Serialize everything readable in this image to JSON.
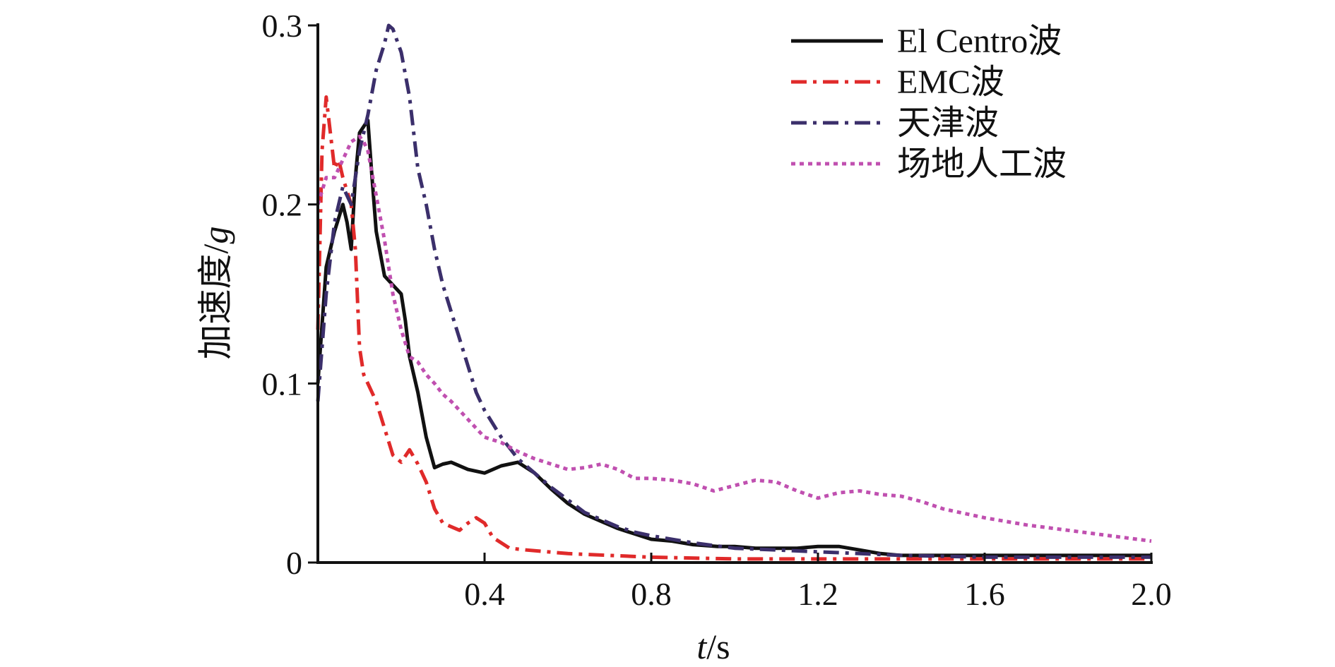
{
  "chart_data": {
    "type": "line",
    "title": "",
    "xlabel": {
      "var": "t",
      "unit": "/s"
    },
    "ylabel": {
      "text": "加速度/",
      "var": "g"
    },
    "xlim": [
      0,
      2.0
    ],
    "ylim": [
      0,
      0.3
    ],
    "xticks": [
      0.4,
      0.8,
      1.2,
      1.6,
      2.0
    ],
    "xtick_labels": [
      "0.4",
      "0.8",
      "1.2",
      "1.6",
      "2.0"
    ],
    "yticks": [
      0,
      0.1,
      0.2,
      0.3
    ],
    "ytick_labels": [
      "0",
      "0.1",
      "0.2",
      "0.3"
    ],
    "grid": false,
    "legend_position": "top-right",
    "series": [
      {
        "name": "El Centro波",
        "color": "#111111",
        "dash": "solid",
        "x": [
          0.0,
          0.02,
          0.04,
          0.06,
          0.07,
          0.08,
          0.09,
          0.1,
          0.12,
          0.13,
          0.14,
          0.16,
          0.18,
          0.2,
          0.21,
          0.22,
          0.24,
          0.26,
          0.28,
          0.3,
          0.32,
          0.36,
          0.4,
          0.44,
          0.48,
          0.52,
          0.56,
          0.6,
          0.64,
          0.68,
          0.72,
          0.76,
          0.8,
          0.85,
          0.9,
          0.96,
          1.0,
          1.05,
          1.1,
          1.15,
          1.2,
          1.25,
          1.3,
          1.35,
          1.4,
          1.5,
          1.6,
          1.7,
          1.8,
          2.0
        ],
        "y": [
          0.1,
          0.165,
          0.185,
          0.2,
          0.19,
          0.175,
          0.215,
          0.24,
          0.247,
          0.215,
          0.185,
          0.16,
          0.155,
          0.15,
          0.135,
          0.115,
          0.095,
          0.07,
          0.053,
          0.055,
          0.056,
          0.052,
          0.05,
          0.054,
          0.056,
          0.05,
          0.041,
          0.033,
          0.027,
          0.023,
          0.019,
          0.016,
          0.013,
          0.012,
          0.01,
          0.009,
          0.009,
          0.008,
          0.008,
          0.008,
          0.009,
          0.009,
          0.007,
          0.005,
          0.004,
          0.004,
          0.004,
          0.004,
          0.004,
          0.004
        ]
      },
      {
        "name": "EMC波",
        "color": "#e02a2a",
        "dash": "dashdot",
        "x": [
          0.0,
          0.01,
          0.02,
          0.03,
          0.04,
          0.05,
          0.06,
          0.08,
          0.09,
          0.1,
          0.11,
          0.12,
          0.14,
          0.16,
          0.18,
          0.2,
          0.22,
          0.24,
          0.26,
          0.28,
          0.3,
          0.34,
          0.36,
          0.38,
          0.4,
          0.42,
          0.46,
          0.5,
          0.6,
          0.7,
          0.8,
          1.0,
          1.2,
          1.4,
          1.6,
          1.8,
          2.0
        ],
        "y": [
          0.13,
          0.23,
          0.26,
          0.24,
          0.22,
          0.225,
          0.215,
          0.2,
          0.175,
          0.12,
          0.105,
          0.1,
          0.09,
          0.075,
          0.06,
          0.056,
          0.063,
          0.055,
          0.045,
          0.03,
          0.022,
          0.018,
          0.022,
          0.025,
          0.022,
          0.014,
          0.008,
          0.007,
          0.005,
          0.004,
          0.003,
          0.002,
          0.002,
          0.002,
          0.002,
          0.002,
          0.002
        ]
      },
      {
        "name": "天津波",
        "color": "#3b2f6b",
        "dash": "dashdot",
        "x": [
          0.0,
          0.02,
          0.04,
          0.06,
          0.08,
          0.1,
          0.12,
          0.14,
          0.16,
          0.17,
          0.18,
          0.2,
          0.22,
          0.24,
          0.26,
          0.28,
          0.3,
          0.32,
          0.34,
          0.36,
          0.38,
          0.4,
          0.44,
          0.48,
          0.52,
          0.56,
          0.6,
          0.64,
          0.68,
          0.72,
          0.76,
          0.8,
          0.9,
          1.0,
          1.1,
          1.2,
          1.3,
          1.4,
          1.6,
          1.8,
          2.0
        ],
        "y": [
          0.09,
          0.15,
          0.19,
          0.21,
          0.2,
          0.23,
          0.25,
          0.275,
          0.29,
          0.3,
          0.298,
          0.285,
          0.26,
          0.22,
          0.2,
          0.175,
          0.155,
          0.14,
          0.125,
          0.11,
          0.095,
          0.085,
          0.07,
          0.058,
          0.05,
          0.042,
          0.035,
          0.028,
          0.024,
          0.02,
          0.017,
          0.015,
          0.011,
          0.008,
          0.007,
          0.006,
          0.005,
          0.004,
          0.003,
          0.003,
          0.003
        ]
      },
      {
        "name": "场地人工波",
        "color": "#c050b0",
        "dash": "dotted",
        "x": [
          0.0,
          0.02,
          0.04,
          0.06,
          0.08,
          0.1,
          0.11,
          0.12,
          0.14,
          0.16,
          0.18,
          0.2,
          0.22,
          0.24,
          0.26,
          0.28,
          0.3,
          0.32,
          0.34,
          0.36,
          0.38,
          0.4,
          0.44,
          0.48,
          0.52,
          0.56,
          0.6,
          0.64,
          0.68,
          0.72,
          0.76,
          0.8,
          0.85,
          0.9,
          0.95,
          1.0,
          1.05,
          1.1,
          1.15,
          1.2,
          1.25,
          1.3,
          1.35,
          1.4,
          1.45,
          1.5,
          1.6,
          1.7,
          1.8,
          1.9,
          2.0
        ],
        "y": [
          0.2,
          0.215,
          0.215,
          0.225,
          0.235,
          0.238,
          0.235,
          0.23,
          0.205,
          0.18,
          0.15,
          0.13,
          0.115,
          0.112,
          0.105,
          0.1,
          0.094,
          0.09,
          0.085,
          0.08,
          0.075,
          0.07,
          0.067,
          0.062,
          0.058,
          0.055,
          0.052,
          0.053,
          0.055,
          0.052,
          0.047,
          0.047,
          0.046,
          0.044,
          0.04,
          0.043,
          0.046,
          0.045,
          0.04,
          0.036,
          0.039,
          0.04,
          0.038,
          0.037,
          0.034,
          0.03,
          0.025,
          0.021,
          0.018,
          0.015,
          0.012
        ]
      }
    ]
  }
}
